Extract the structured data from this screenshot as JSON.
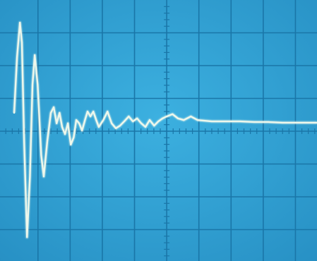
{
  "chart_data": {
    "type": "line",
    "x": [
      0.26,
      0.35,
      0.44,
      0.5,
      0.57,
      0.66,
      0.75,
      0.83,
      0.9,
      0.99,
      1.1,
      1.18,
      1.29,
      1.4,
      1.49,
      1.58,
      1.67,
      1.75,
      1.84,
      1.93,
      2.02,
      2.11,
      2.19,
      2.28,
      2.37,
      2.46,
      2.54,
      2.63,
      2.72,
      2.81,
      2.89,
      3.03,
      3.16,
      3.29,
      3.42,
      3.55,
      3.68,
      3.82,
      3.95,
      4.08,
      4.21,
      4.34,
      4.47,
      4.61,
      4.74,
      4.87,
      5.0,
      5.18,
      5.35,
      5.53,
      5.75,
      5.96,
      6.4,
      6.84,
      7.28,
      7.72,
      8.16,
      8.6,
      9.04,
      9.67
    ],
    "values": [
      0.56,
      2.26,
      3.31,
      2.71,
      -0.3,
      -3.23,
      -1.38,
      1.42,
      2.32,
      1.42,
      -0.73,
      -1.38,
      -0.3,
      0.56,
      0.73,
      0.24,
      0.56,
      0.13,
      -0.09,
      0.24,
      -0.41,
      -0.19,
      0.34,
      0.24,
      0.02,
      0.34,
      0.6,
      0.45,
      0.6,
      0.34,
      0.13,
      0.34,
      0.6,
      0.24,
      0.09,
      0.17,
      0.3,
      0.45,
      0.3,
      0.39,
      0.24,
      0.13,
      0.34,
      0.17,
      0.3,
      0.39,
      0.45,
      0.52,
      0.39,
      0.34,
      0.45,
      0.34,
      0.3,
      0.3,
      0.3,
      0.28,
      0.28,
      0.26,
      0.26,
      0.26
    ],
    "color": "#eef8ec",
    "xlim": [
      -0.18,
      9.67
    ],
    "ylim": [
      -4,
      4
    ],
    "xticks": [
      1,
      2,
      3,
      4,
      5,
      6,
      7,
      8,
      9
    ],
    "yticks": [
      -3,
      -2,
      -1,
      0,
      1,
      2,
      3
    ],
    "grid": true
  }
}
